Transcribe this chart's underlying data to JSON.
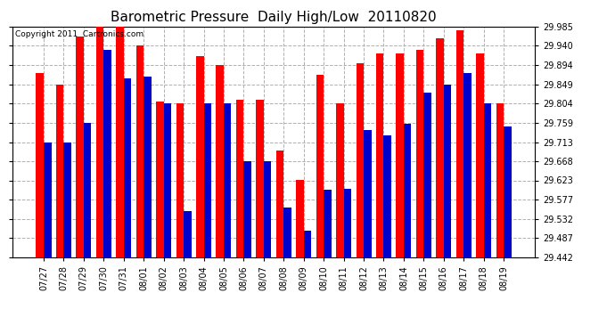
{
  "title": "Barometric Pressure  Daily High/Low  20110820",
  "copyright": "Copyright 2011  Cartronics.com",
  "dates": [
    "07/27",
    "07/28",
    "07/29",
    "07/30",
    "07/31",
    "08/01",
    "08/02",
    "08/03",
    "08/04",
    "08/05",
    "08/06",
    "08/07",
    "08/08",
    "08/09",
    "08/10",
    "08/11",
    "08/12",
    "08/13",
    "08/14",
    "08/15",
    "08/16",
    "08/17",
    "08/18",
    "08/19"
  ],
  "highs": [
    29.876,
    29.849,
    29.962,
    29.985,
    29.985,
    29.94,
    29.808,
    29.804,
    29.916,
    29.894,
    29.812,
    29.812,
    29.694,
    29.623,
    29.872,
    29.804,
    29.9,
    29.921,
    29.921,
    29.93,
    29.958,
    29.976,
    29.921,
    29.804
  ],
  "lows": [
    29.713,
    29.713,
    29.759,
    29.93,
    29.863,
    29.868,
    29.804,
    29.551,
    29.804,
    29.804,
    29.668,
    29.668,
    29.56,
    29.505,
    29.6,
    29.604,
    29.741,
    29.728,
    29.757,
    29.83,
    29.849,
    29.876,
    29.804,
    29.75
  ],
  "high_color": "#ff0000",
  "low_color": "#0000cc",
  "background": "#ffffff",
  "ylim_min": 29.442,
  "ylim_max": 29.985,
  "yticks": [
    29.442,
    29.487,
    29.532,
    29.577,
    29.623,
    29.668,
    29.713,
    29.759,
    29.804,
    29.849,
    29.894,
    29.94,
    29.985
  ],
  "grid_color": "#b0b0b0",
  "bar_width": 0.38,
  "title_fontsize": 11,
  "tick_fontsize": 7,
  "copyright_fontsize": 6.5
}
